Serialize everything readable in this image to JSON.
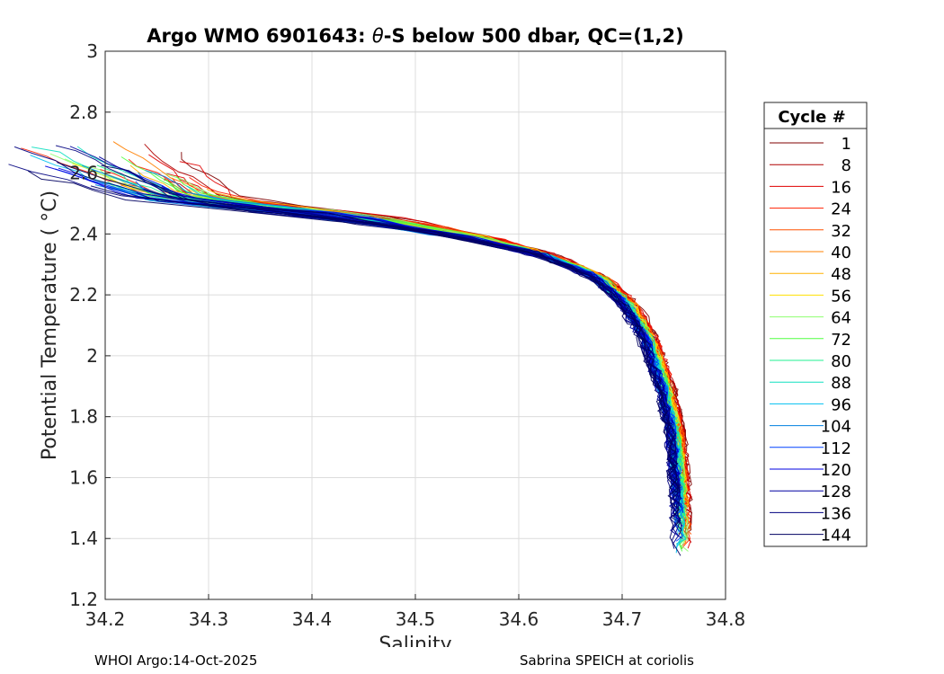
{
  "chart_data": {
    "type": "line",
    "title_prefix": "Argo WMO 6901643: ",
    "title_theta": "θ",
    "title_suffix": "-S below 500 dbar,  QC=(1,2)",
    "xlabel": "Salinity",
    "ylabel": "Potential Temperature ( °C)",
    "xlim": [
      34.2,
      34.8
    ],
    "ylim": [
      1.2,
      3.0
    ],
    "xticks": [
      "34.2",
      "34.3",
      "34.4",
      "34.5",
      "34.6",
      "34.7",
      "34.8"
    ],
    "yticks": [
      "1.2",
      "1.4",
      "1.6",
      "1.8",
      "2",
      "2.2",
      "2.4",
      "2.6",
      "2.8",
      "3"
    ],
    "grid": true,
    "legend_title": "Cycle #",
    "legend_position": "right-outside",
    "legend": [
      {
        "label": "1",
        "color": "#800000"
      },
      {
        "label": "8",
        "color": "#b00000"
      },
      {
        "label": "16",
        "color": "#e00000"
      },
      {
        "label": "24",
        "color": "#ff2000"
      },
      {
        "label": "32",
        "color": "#ff5000"
      },
      {
        "label": "40",
        "color": "#ff8000"
      },
      {
        "label": "48",
        "color": "#ffb000"
      },
      {
        "label": "56",
        "color": "#ffe000"
      },
      {
        "label": "64",
        "color": "#8fff70"
      },
      {
        "label": "72",
        "color": "#50ff40"
      },
      {
        "label": "80",
        "color": "#20f090"
      },
      {
        "label": "88",
        "color": "#10e0c0"
      },
      {
        "label": "96",
        "color": "#00c0f0"
      },
      {
        "label": "104",
        "color": "#0080e0"
      },
      {
        "label": "112",
        "color": "#0040ff"
      },
      {
        "label": "120",
        "color": "#0000e0"
      },
      {
        "label": "128",
        "color": "#0000a0"
      },
      {
        "label": "136",
        "color": "#000080"
      },
      {
        "label": "144",
        "color": "#000060"
      }
    ],
    "series_anchor": {
      "salinity": [
        34.28,
        34.35,
        34.45,
        34.55,
        34.62,
        34.67,
        34.7,
        34.72,
        34.735,
        34.745,
        34.75,
        34.752
      ],
      "theta": [
        2.52,
        2.49,
        2.45,
        2.39,
        2.33,
        2.26,
        2.17,
        2.05,
        1.9,
        1.75,
        1.55,
        1.38
      ]
    }
  },
  "footer": {
    "left": "WHOI Argo:14-Oct-2025",
    "right": "Sabrina SPEICH at coriolis"
  }
}
